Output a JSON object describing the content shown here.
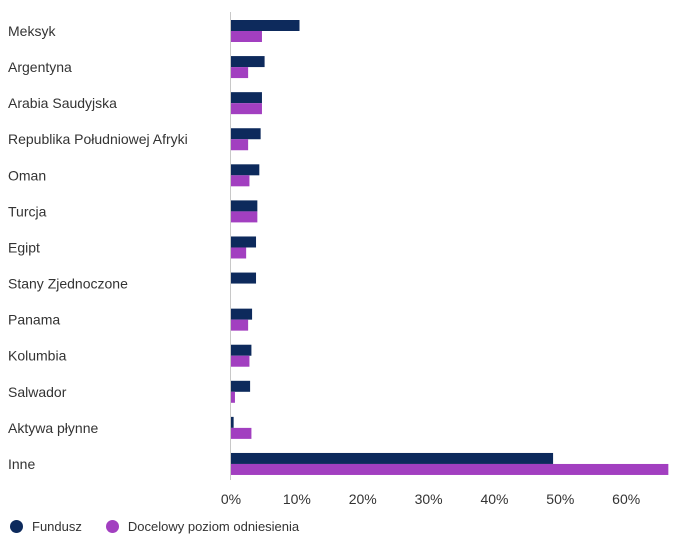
{
  "chart_data": {
    "type": "bar",
    "orientation": "horizontal",
    "categories": [
      "Meksyk",
      "Argentyna",
      "Arabia Saudyjska",
      "Republika Południowej Afryki",
      "Oman",
      "Turcja",
      "Egipt",
      "Stany Zjednoczone",
      "Panama",
      "Kolumbia",
      "Salwador",
      "Aktywa płynne",
      "Inne"
    ],
    "series": [
      {
        "name": "Fundusz",
        "color": "#0d2a5c",
        "values": [
          10.4,
          5.1,
          4.7,
          4.5,
          4.3,
          4.0,
          3.8,
          3.8,
          3.2,
          3.1,
          2.9,
          0.4,
          48.9
        ]
      },
      {
        "name": "Docelowy poziom odniesienia",
        "color": "#a23fc0",
        "values": [
          4.7,
          2.6,
          4.7,
          2.6,
          2.8,
          4.0,
          2.3,
          0,
          2.6,
          2.8,
          0.6,
          3.1,
          66.4
        ]
      }
    ],
    "xlim": [
      0,
      66.5
    ],
    "xticks": [
      "0%",
      "10%",
      "20%",
      "30%",
      "40%",
      "50%",
      "60%"
    ],
    "xtick_values": [
      0,
      10,
      20,
      30,
      40,
      50,
      60
    ],
    "legend_position": "bottom-left",
    "grid": false
  }
}
